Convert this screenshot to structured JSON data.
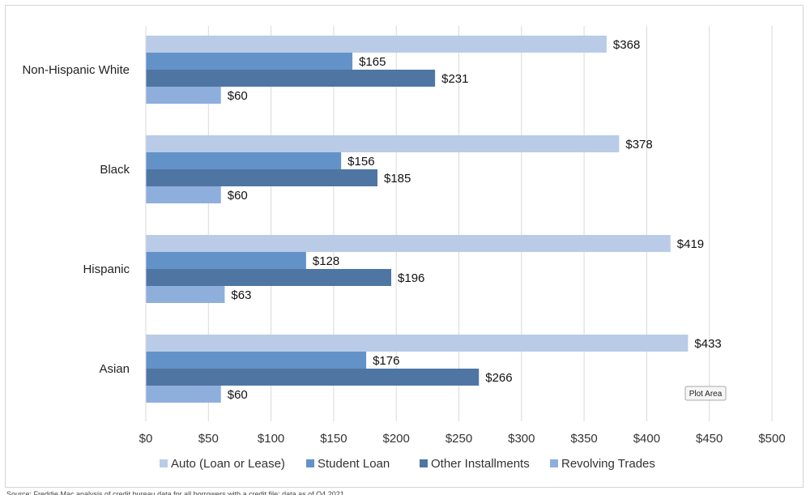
{
  "chart_data": {
    "type": "bar",
    "orientation": "horizontal",
    "categories": [
      "Non-Hispanic White",
      "Black",
      "Hispanic",
      "Asian"
    ],
    "series": [
      {
        "name": "Auto (Loan or Lease)",
        "values": [
          368,
          378,
          419,
          433
        ],
        "color": "#b9cbe7"
      },
      {
        "name": "Student Loan",
        "values": [
          165,
          156,
          128,
          176
        ],
        "color": "#6392c8"
      },
      {
        "name": "Other Installments",
        "values": [
          231,
          185,
          196,
          266
        ],
        "color": "#4f76a3"
      },
      {
        "name": "Revolving Trades",
        "values": [
          60,
          60,
          63,
          60
        ],
        "color": "#8eaedc"
      }
    ],
    "value_prefix": "$",
    "xlim": [
      0,
      500
    ],
    "xticks": [
      0,
      50,
      100,
      150,
      200,
      250,
      300,
      350,
      400,
      450,
      500
    ],
    "grid": "vertical",
    "legend_position": "bottom"
  },
  "tooltip": {
    "label": "Plot Area"
  },
  "source_note": "Source: Freddie Mac analysis of credit bureau data for all borrowers with a credit file; data as of Q4 2021."
}
